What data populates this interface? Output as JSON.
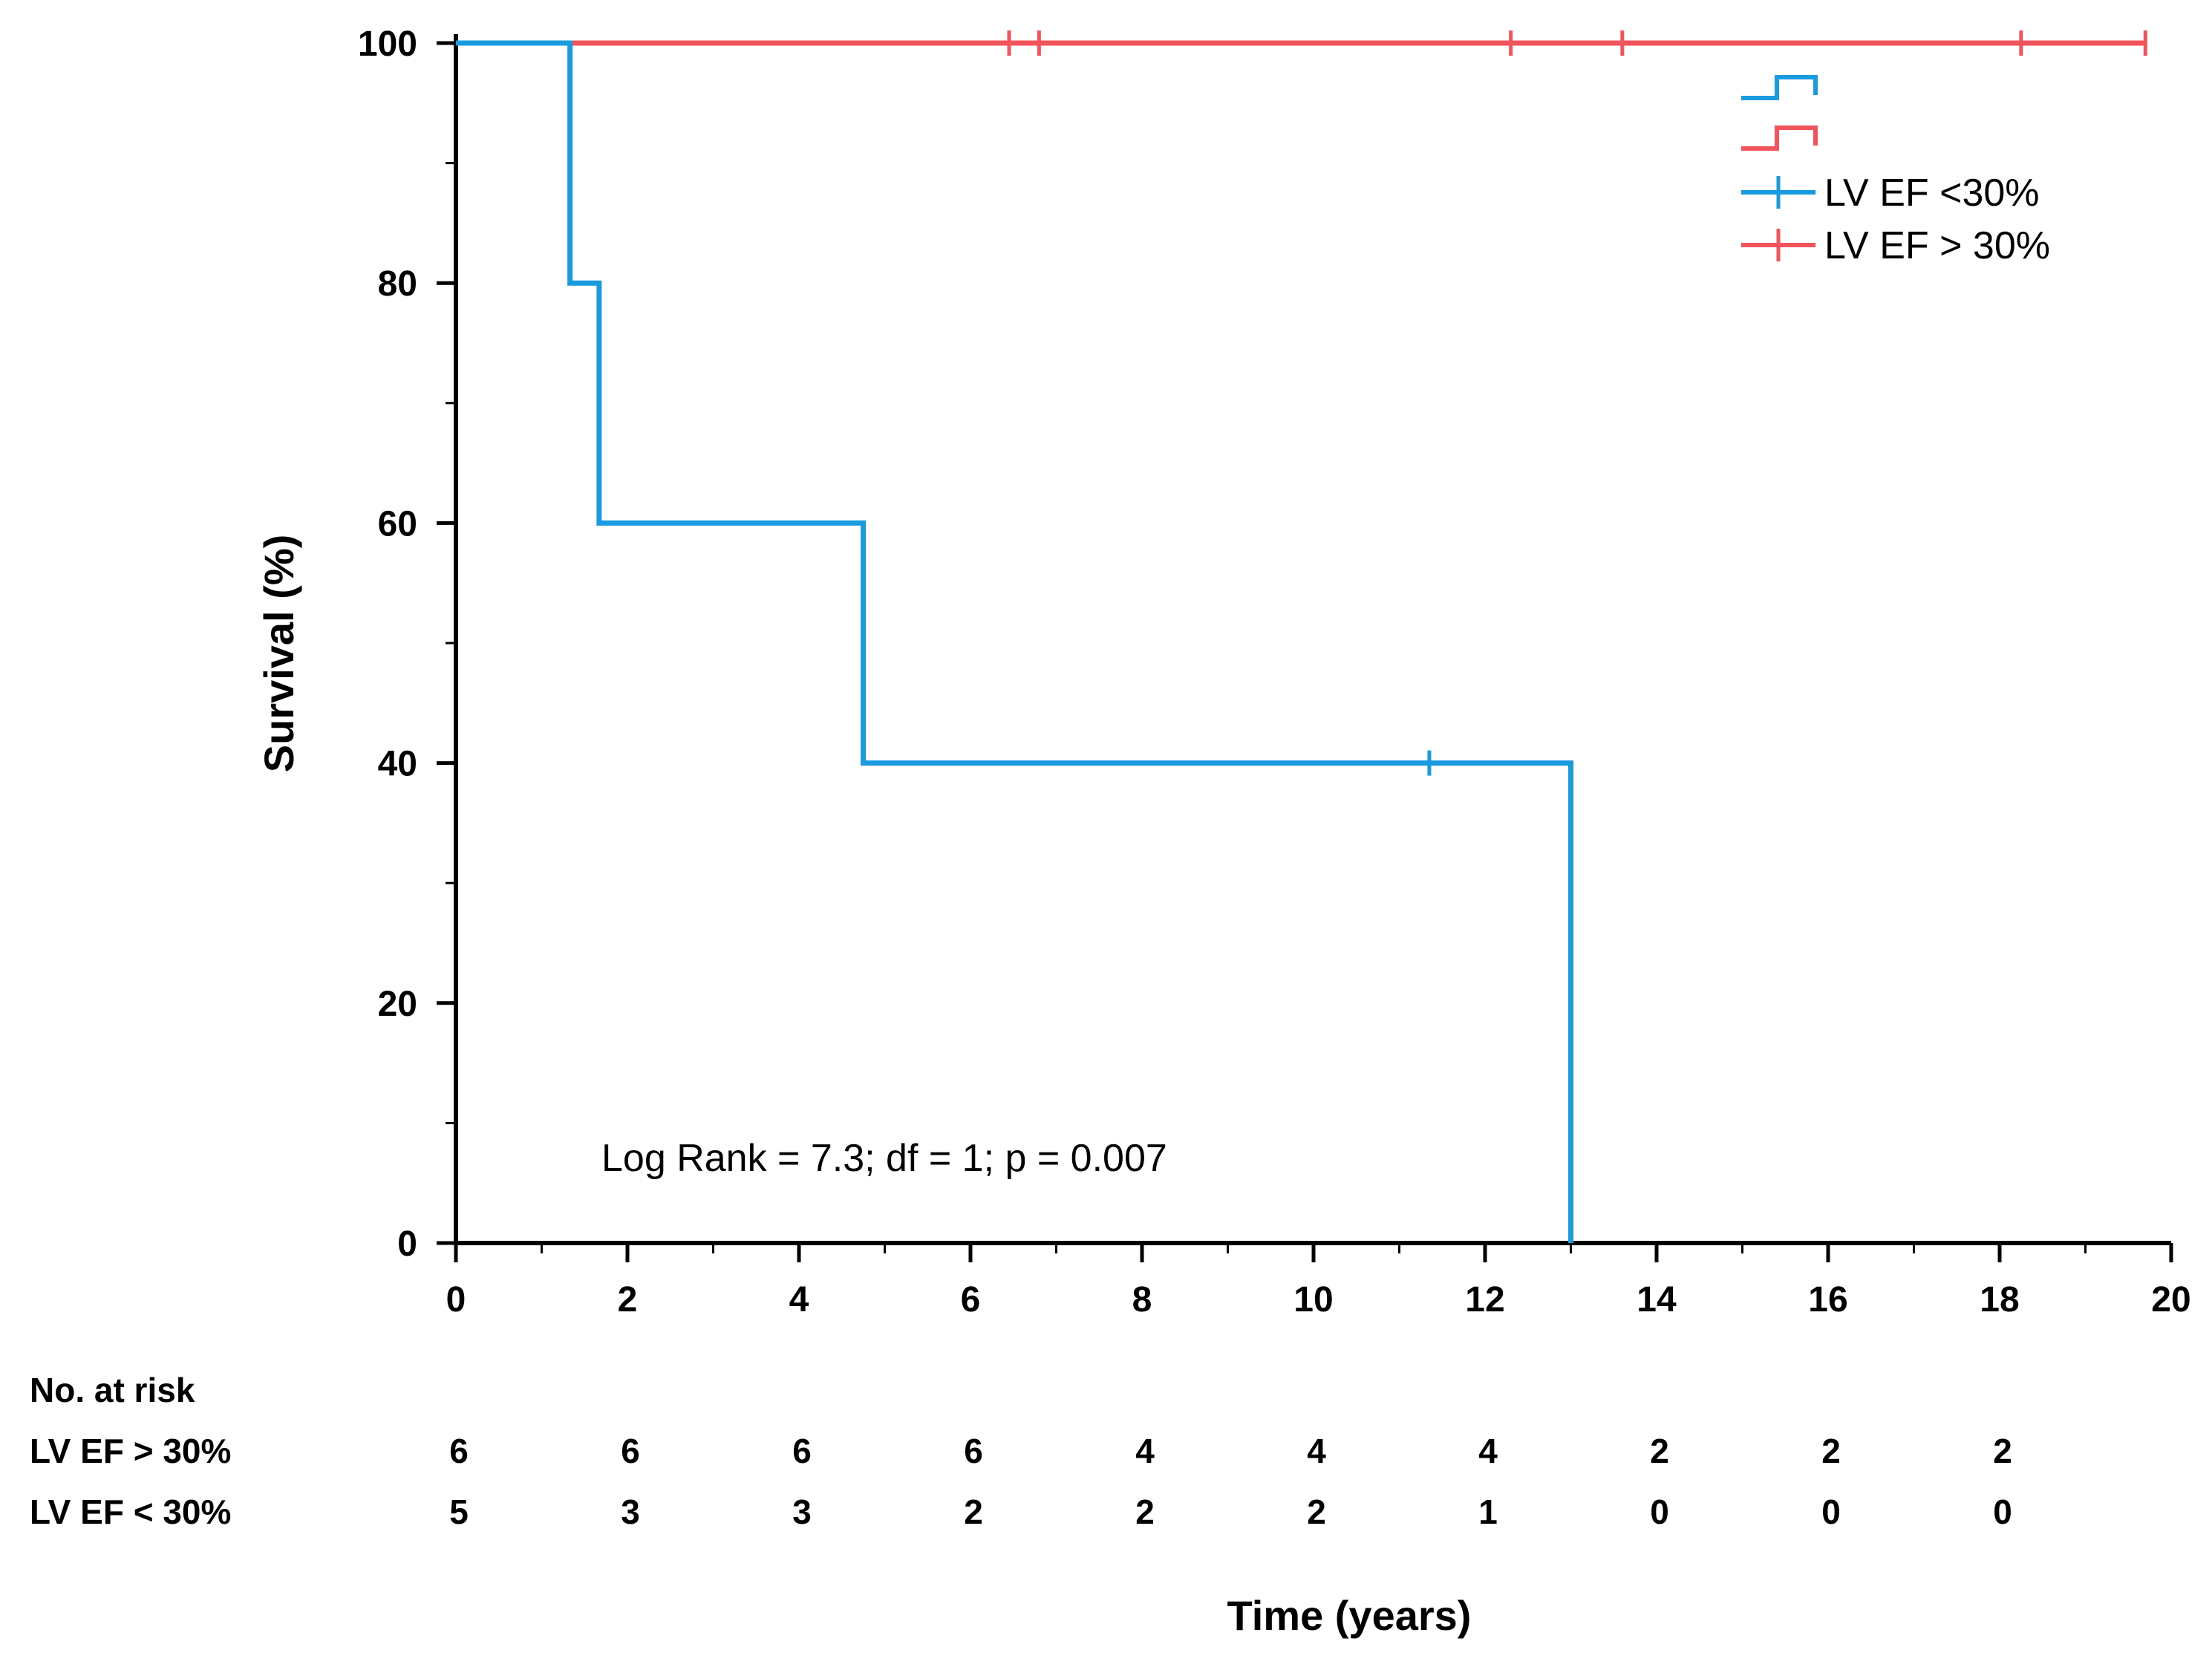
{
  "chart_data": {
    "type": "line",
    "subtype": "kaplan-meier",
    "title": "",
    "xlabel": "Time (years)",
    "ylabel": "Survival (%)",
    "xlim": [
      0,
      20
    ],
    "ylim": [
      0,
      100
    ],
    "x_ticks": [
      0,
      2,
      4,
      6,
      8,
      10,
      12,
      14,
      16,
      18,
      20
    ],
    "y_ticks": [
      0,
      20,
      40,
      60,
      80,
      100
    ],
    "grid": false,
    "legend_position": "top-right",
    "series": [
      {
        "name": "LV EF <30%",
        "color": "#1a9be0",
        "steps": [
          [
            0,
            100
          ],
          [
            1.33,
            80
          ],
          [
            1.67,
            60
          ],
          [
            4.75,
            40
          ],
          [
            13.0,
            0
          ]
        ],
        "end_x": 13.0,
        "censored": [
          [
            11.35,
            40
          ]
        ]
      },
      {
        "name": "LV EF > 30%",
        "color": "#f2545b",
        "steps": [
          [
            0,
            100
          ]
        ],
        "end_x": 19.7,
        "censored": [
          [
            6.45,
            100
          ],
          [
            6.8,
            100
          ],
          [
            12.3,
            100
          ],
          [
            13.6,
            100
          ],
          [
            18.25,
            100
          ],
          [
            19.7,
            100
          ]
        ]
      }
    ],
    "annotation": "Log Rank = 7.3; df = 1; p = 0.007"
  },
  "risk_table": {
    "header": "No. at risk",
    "times": [
      0,
      2,
      4,
      6,
      8,
      10,
      12,
      14,
      16,
      18
    ],
    "rows": [
      {
        "label": "LV EF > 30%",
        "values": [
          "6",
          "6",
          "6",
          "6",
          "4",
          "4",
          "4",
          "2",
          "2",
          "2"
        ]
      },
      {
        "label": "LV EF < 30%",
        "values": [
          "5",
          "3",
          "3",
          "2",
          "2",
          "2",
          "1",
          "0",
          "0",
          "0"
        ]
      }
    ]
  }
}
